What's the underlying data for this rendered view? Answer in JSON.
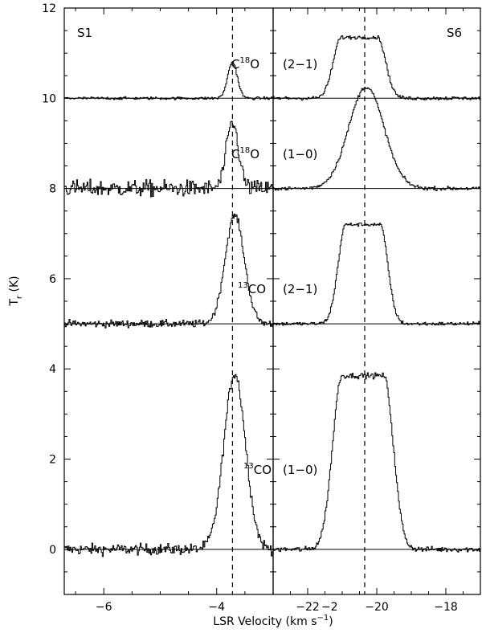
{
  "chart_data": {
    "type": "line",
    "xlabel": "LSR Velocity (km s",
    "xlabel_sup": "−1",
    "xlabel_close": ")",
    "ylabel_main": "T",
    "ylabel_sub": "r",
    "ylabel_unit": " (K)",
    "ylim": [
      -1,
      12
    ],
    "y_ticks": [
      0,
      2,
      4,
      6,
      8,
      10,
      12
    ],
    "panels": [
      {
        "name": "S1",
        "xlim": [
          -6.7,
          -3.0
        ],
        "x_ticks": [
          -6,
          -4,
          -2
        ],
        "dashed_line_velocity": -3.72,
        "series": [
          {
            "molecule": "¹³CO",
            "transition": "(1−0)",
            "baseline": 0,
            "center": -3.68,
            "width_fwhm": 0.45,
            "peak": 3.9,
            "noise_rms": 0.12
          },
          {
            "molecule": "¹³CO",
            "transition": "(2−1)",
            "baseline": 5,
            "center": -3.68,
            "width_fwhm": 0.4,
            "peak": 2.4,
            "noise_rms": 0.08
          },
          {
            "molecule": "C¹⁸O",
            "transition": "(1−0)",
            "baseline": 8,
            "center": -3.72,
            "width_fwhm": 0.25,
            "peak": 1.45,
            "noise_rms": 0.18
          },
          {
            "molecule": "C¹⁸O",
            "transition": "(2−1)",
            "baseline": 10,
            "center": -3.72,
            "width_fwhm": 0.2,
            "peak": 0.8,
            "noise_rms": 0.03
          }
        ]
      },
      {
        "name": "S6",
        "xlim": [
          -23.0,
          -17.0
        ],
        "x_ticks": [
          -22,
          -20,
          -18
        ],
        "dashed_line_velocity": -20.35,
        "series": [
          {
            "molecule": "¹³CO",
            "transition": "(1−0)",
            "baseline": 0,
            "center": -20.4,
            "width_fwhm": 2.2,
            "peak": 3.85,
            "noise_rms": 0.06
          },
          {
            "molecule": "¹³CO",
            "transition": "(2−1)",
            "baseline": 5,
            "center": -20.4,
            "width_fwhm": 1.8,
            "peak": 2.2,
            "noise_rms": 0.04
          },
          {
            "molecule": "C¹⁸O",
            "transition": "(1−0)",
            "baseline": 8,
            "center": -20.3,
            "width_fwhm": 1.2,
            "peak": 2.25,
            "noise_rms": 0.04
          },
          {
            "molecule": "C¹⁸O",
            "transition": "(2−1)",
            "baseline": 10,
            "center": -20.5,
            "width_fwhm": 1.9,
            "peak": 1.35,
            "noise_rms": 0.04
          }
        ]
      }
    ],
    "labels": {
      "s1_c18o_21": "C18O",
      "s1_c18o_10": "C18O",
      "s1_13co_21": "13CO",
      "s1_13co_10": "13CO",
      "s6_t_21_top": "(2−1)",
      "s6_t_10_mid": "(1−0)",
      "s6_t_21_low": "(2−1)",
      "s6_t_10_bot": "(1−0)"
    },
    "grid": false,
    "legend": "none"
  }
}
